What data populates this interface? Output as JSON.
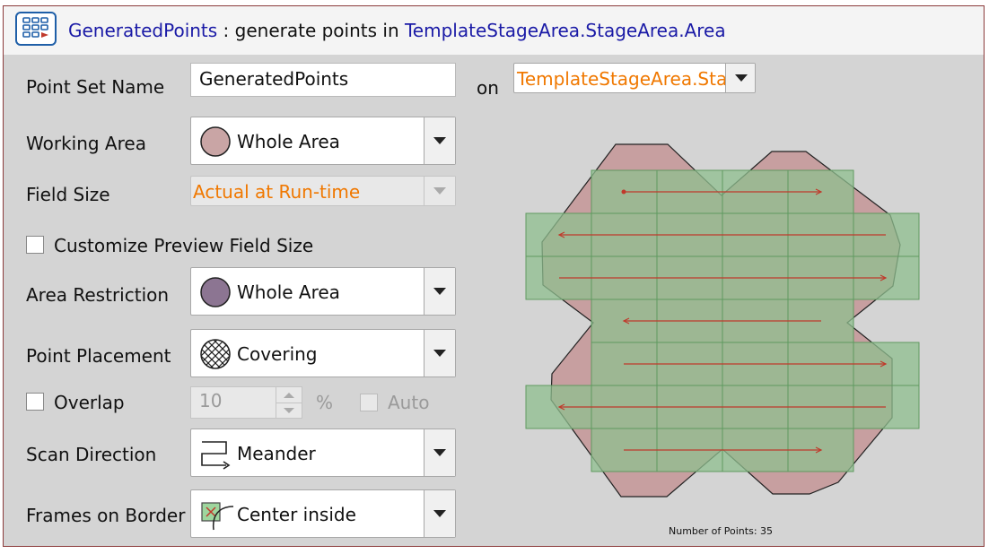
{
  "header": {
    "point_set_link": "GeneratedPoints",
    "separator_text": ": generate points in",
    "area_link": "TemplateStageArea.StageArea.Area"
  },
  "form": {
    "point_set_name": {
      "label": "Point Set Name",
      "value": "GeneratedPoints"
    },
    "on_label": "on",
    "on_value": "TemplateStageArea.Sta",
    "working_area": {
      "label": "Working Area",
      "value": "Whole Area"
    },
    "field_size": {
      "label": "Field Size",
      "value": "Actual at Run-time"
    },
    "customize_preview": {
      "label": "Customize Preview Field Size",
      "checked": false
    },
    "area_restriction": {
      "label": "Area Restriction",
      "value": "Whole Area"
    },
    "point_placement": {
      "label": "Point Placement",
      "value": "Covering"
    },
    "overlap": {
      "label": "Overlap",
      "checked": false,
      "value": "10",
      "unit": "%",
      "auto_label": "Auto",
      "auto_checked": false
    },
    "scan_direction": {
      "label": "Scan Direction",
      "value": "Meander"
    },
    "frames_on_border": {
      "label": "Frames on Border",
      "value": "Center inside"
    }
  },
  "preview": {
    "points_label": "Number of Points: 35"
  },
  "colors": {
    "link": "#1a1aa6",
    "orange": "#f07800",
    "working_area_swatch": "#c9a5a5",
    "restriction_swatch": "#8c7592",
    "field_fill": "#8fbf8f",
    "scan_arrow": "#c0392b"
  }
}
